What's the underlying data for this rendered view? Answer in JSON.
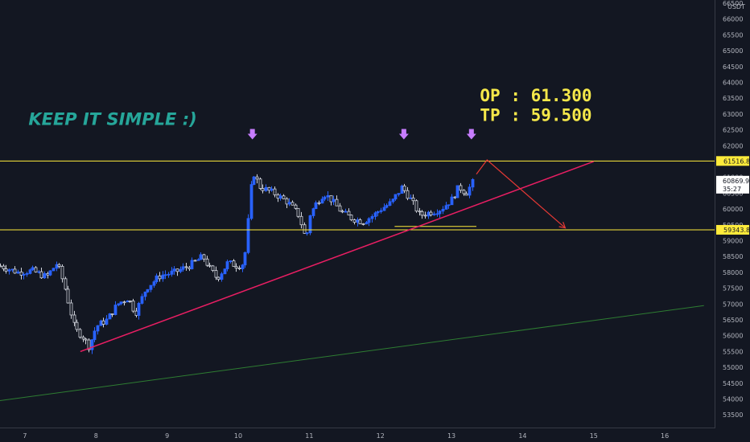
{
  "chart_data": {
    "type": "candlestick",
    "currency": "USDT",
    "ylim": [
      53100,
      66600
    ],
    "xlim": [
      6.65,
      16.7
    ],
    "y_ticks": [
      53500,
      54000,
      54500,
      55000,
      55500,
      56000,
      56500,
      57000,
      57500,
      58000,
      58500,
      59000,
      59500,
      60000,
      60500,
      61000,
      61500,
      62000,
      62500,
      63000,
      63500,
      64000,
      64500,
      65000,
      65500,
      66000,
      66500
    ],
    "x_ticks": [
      {
        "v": 7,
        "label": "7"
      },
      {
        "v": 8,
        "label": "8"
      },
      {
        "v": 9,
        "label": "9"
      },
      {
        "v": 10,
        "label": "10"
      },
      {
        "v": 11,
        "label": "11"
      },
      {
        "v": 12,
        "label": "12"
      },
      {
        "v": 13,
        "label": "13"
      },
      {
        "v": 14,
        "label": "14"
      },
      {
        "v": 15,
        "label": "15"
      },
      {
        "v": 16,
        "label": "16"
      }
    ],
    "price_anchors": [
      [
        6.65,
        58200
      ],
      [
        6.9,
        58000
      ],
      [
        7.1,
        58050
      ],
      [
        7.3,
        57850
      ],
      [
        7.45,
        58300
      ],
      [
        7.55,
        57600
      ],
      [
        7.7,
        56200
      ],
      [
        7.8,
        56000
      ],
      [
        7.9,
        55650
      ],
      [
        8.0,
        56300
      ],
      [
        8.15,
        56500
      ],
      [
        8.3,
        57000
      ],
      [
        8.45,
        57200
      ],
      [
        8.55,
        56700
      ],
      [
        8.7,
        57500
      ],
      [
        8.9,
        57900
      ],
      [
        9.1,
        58000
      ],
      [
        9.3,
        58200
      ],
      [
        9.5,
        58500
      ],
      [
        9.6,
        58100
      ],
      [
        9.7,
        57800
      ],
      [
        9.85,
        58300
      ],
      [
        10.0,
        58200
      ],
      [
        10.08,
        58300
      ],
      [
        10.12,
        59200
      ],
      [
        10.17,
        60500
      ],
      [
        10.2,
        61200
      ],
      [
        10.3,
        60700
      ],
      [
        10.5,
        60500
      ],
      [
        10.7,
        60200
      ],
      [
        10.85,
        59800
      ],
      [
        10.95,
        59000
      ],
      [
        11.0,
        59800
      ],
      [
        11.1,
        60200
      ],
      [
        11.2,
        60500
      ],
      [
        11.3,
        60300
      ],
      [
        11.45,
        59900
      ],
      [
        11.6,
        59700
      ],
      [
        11.75,
        59600
      ],
      [
        11.9,
        59800
      ],
      [
        12.0,
        60000
      ],
      [
        12.15,
        60200
      ],
      [
        12.3,
        60700
      ],
      [
        12.45,
        60200
      ],
      [
        12.55,
        59800
      ],
      [
        12.7,
        59900
      ],
      [
        12.85,
        60000
      ],
      [
        13.0,
        60300
      ],
      [
        13.1,
        60700
      ],
      [
        13.2,
        60500
      ],
      [
        13.3,
        60870
      ]
    ],
    "horizontal_levels": [
      {
        "price": 61516.8,
        "label": "61516.80",
        "color": "#ffeb3b"
      },
      {
        "price": 59343.86,
        "label": "59343.86",
        "color": "#ffeb3b"
      }
    ],
    "last_price": {
      "price": 60869.91,
      "label": "60869.91",
      "countdown": "35:27"
    },
    "trendline": {
      "from": [
        7.78,
        55500
      ],
      "to": [
        15.0,
        61500
      ],
      "color": "#e91e63"
    },
    "long_trendline": {
      "from": [
        6.65,
        53950
      ],
      "to": [
        16.55,
        56950
      ],
      "color": "#2e7d32"
    },
    "support_segment": {
      "from": [
        12.2,
        59450
      ],
      "to": [
        13.35,
        59450
      ]
    },
    "projection": {
      "points": [
        [
          13.35,
          61100
        ],
        [
          13.5,
          61550
        ],
        [
          14.6,
          59400
        ]
      ],
      "color": "#e53935"
    },
    "markers": [
      {
        "x": 10.2,
        "price": 62350
      },
      {
        "x": 12.33,
        "price": 62350
      },
      {
        "x": 13.28,
        "price": 62350
      }
    ],
    "marker_color": "#c77dff",
    "annotations": {
      "keep": {
        "text": "KEEP IT SIMPLE :)",
        "x": 7.05,
        "price": 62650
      },
      "op": {
        "text": "OP : 61.300",
        "x": 13.4,
        "price": 63400
      },
      "tp": {
        "text": "TP : 59.500",
        "x": 13.4,
        "price": 62780
      }
    }
  }
}
